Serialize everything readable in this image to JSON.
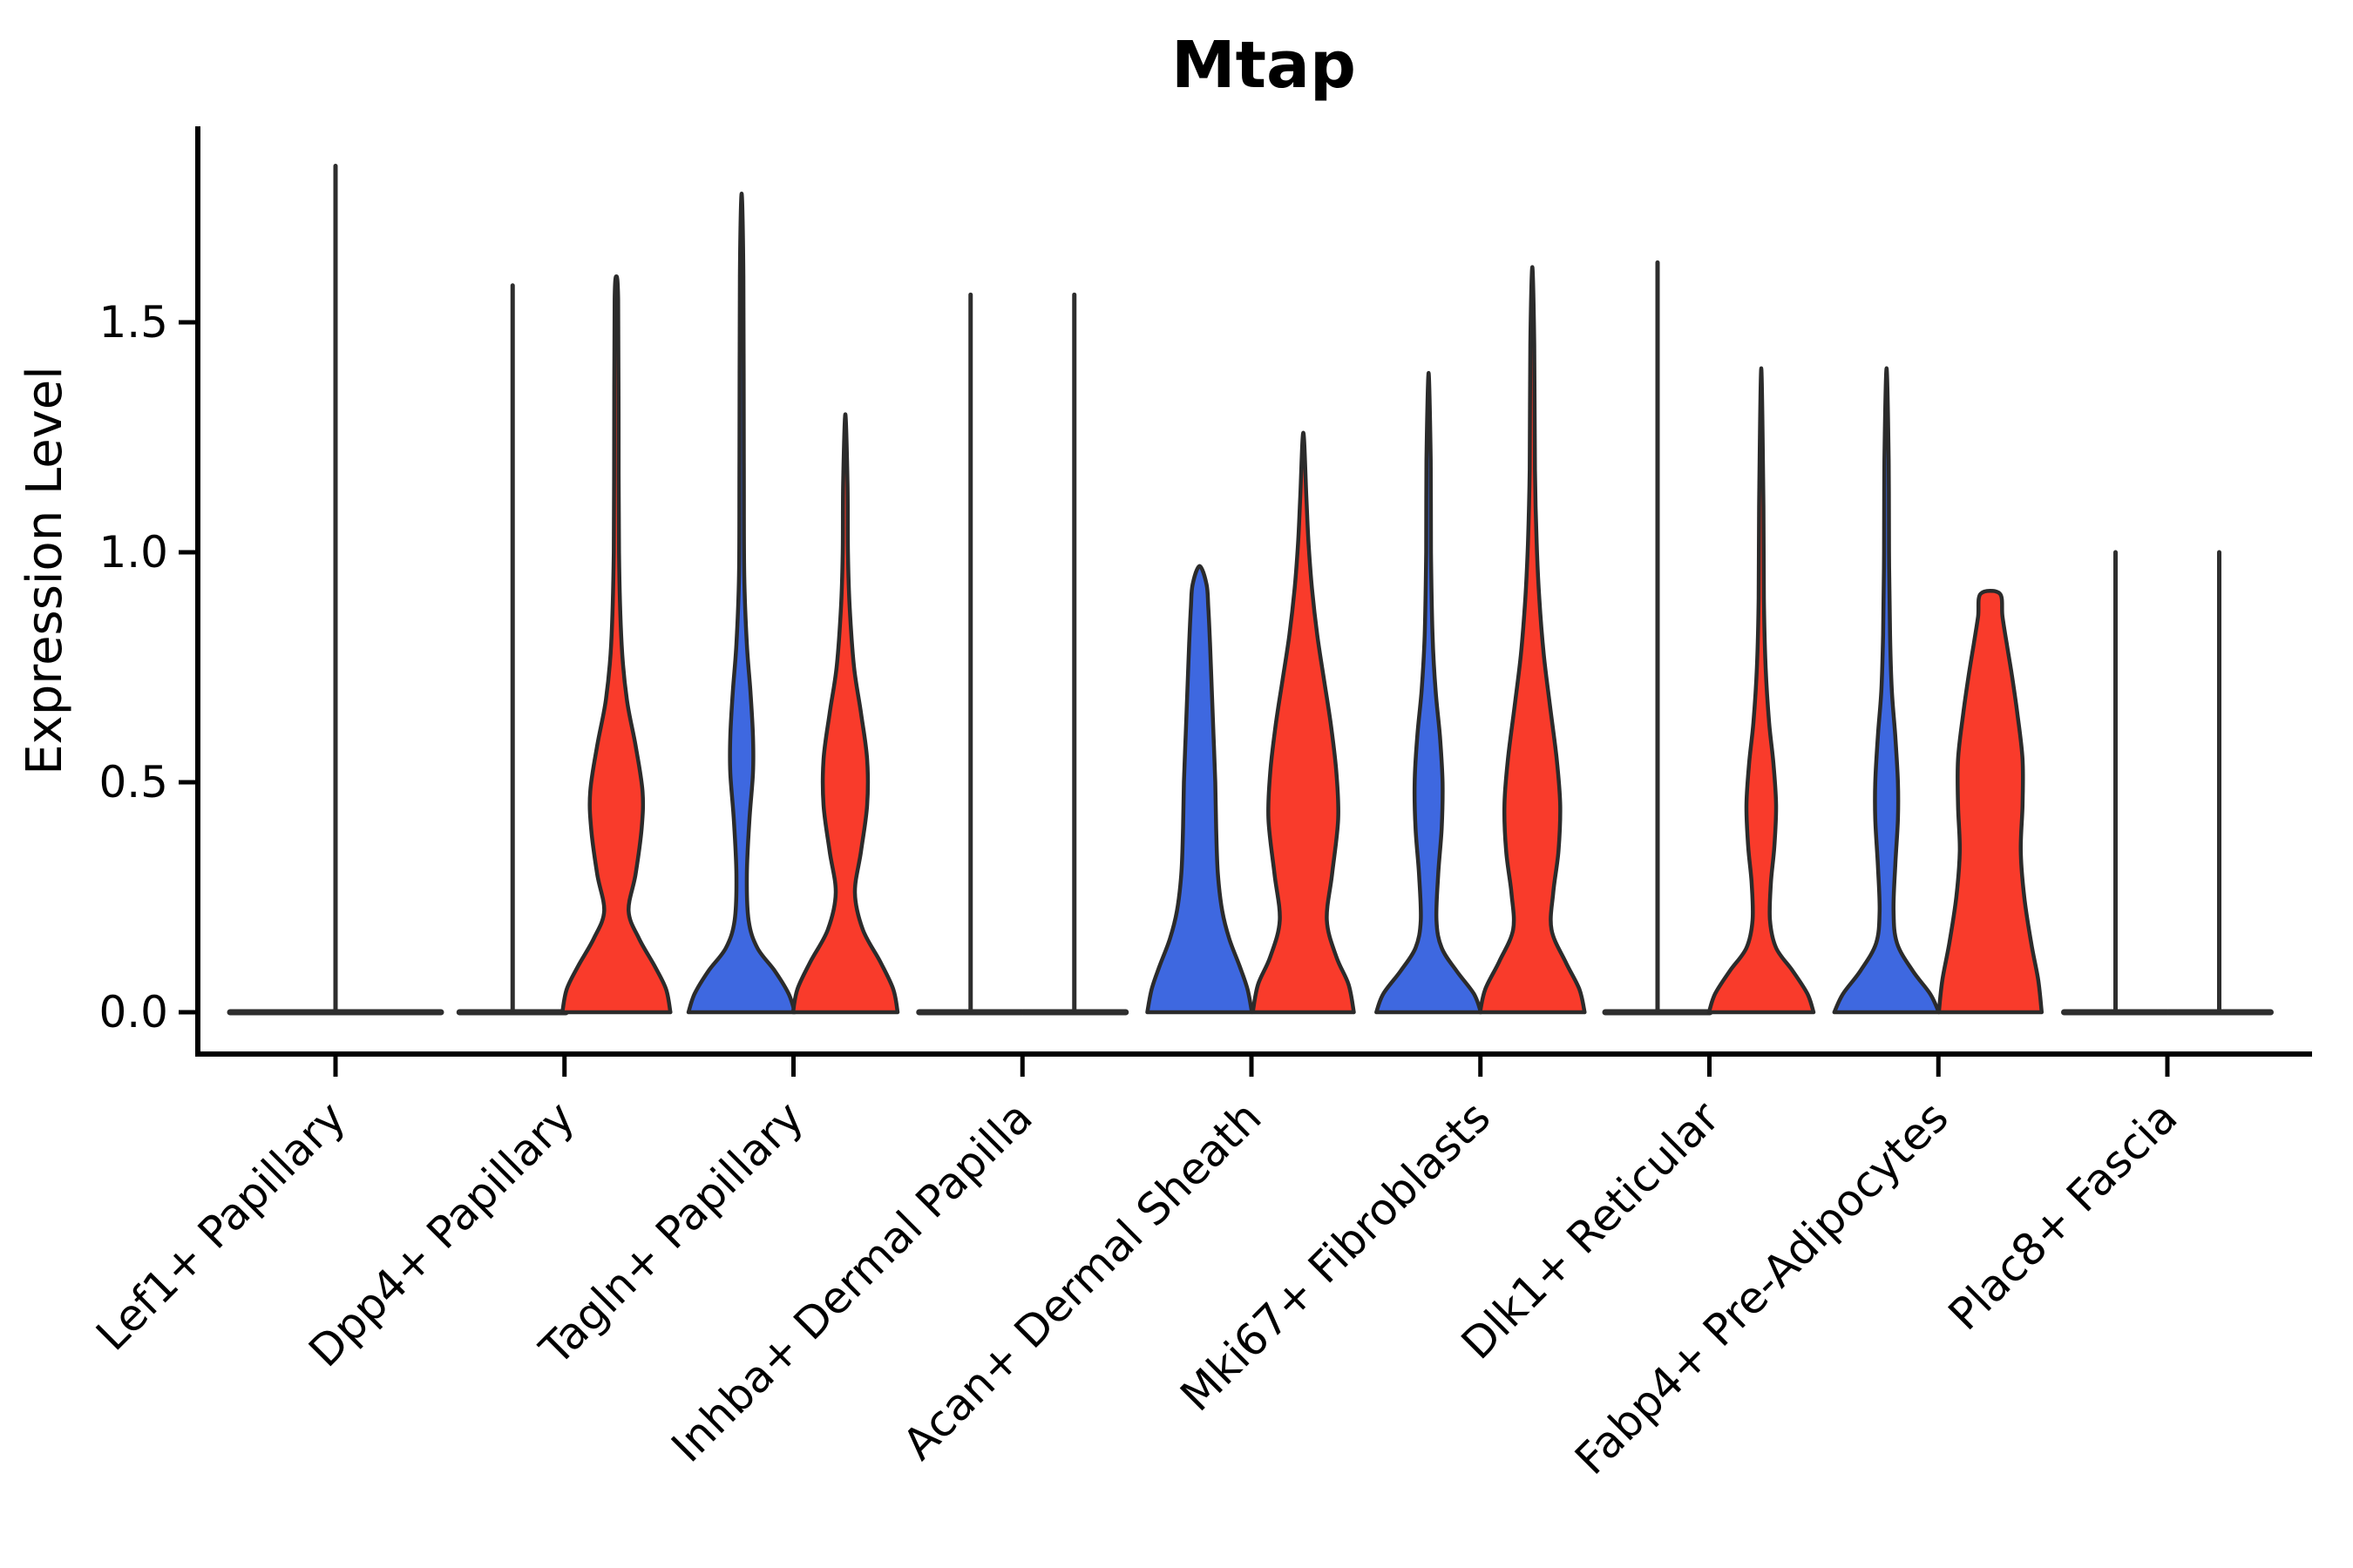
{
  "figure": {
    "title": "Mtap",
    "background": "#ffffff"
  },
  "chart_data": {
    "type": "violin",
    "subtype": "split-violin",
    "title": "Mtap",
    "xlabel": "",
    "ylabel": "Expression Level",
    "grid": false,
    "legend_position": "none",
    "ylim": [
      -0.09,
      1.93
    ],
    "ytick_labels": [
      "0.0",
      "0.5",
      "1.0",
      "1.5"
    ],
    "ytick_values": [
      0.0,
      0.5,
      1.0,
      1.5
    ],
    "categories": [
      "Lef1+ Papillary",
      "Dpp4+ Papillary",
      "Tagln+ Papillary",
      "Inhba+ Dermal Papilla",
      "Acan+ Dermal Sheath",
      "Mki67+ Fibroblasts",
      "Dlk1+ Reticular",
      "Fabp4+ Pre-Adipocytes",
      "Plac8+ Fascia"
    ],
    "colors": {
      "blue_fill": "#3E68E0",
      "red_fill": "#F93B2B",
      "outline": "#2b2b2b"
    },
    "violins": [
      {
        "category": 0,
        "side": "single",
        "color": "none",
        "flat": true,
        "halfwidth": 121,
        "max": 1.84
      },
      {
        "category": 1,
        "side": "left",
        "color": "blue_fill",
        "flat": true,
        "halfwidth": 61,
        "max": 1.58
      },
      {
        "category": 1,
        "side": "right",
        "color": "red_fill",
        "flat": false,
        "max": 1.6,
        "cap": false,
        "profile": [
          [
            0,
            62
          ],
          [
            0.05,
            57
          ],
          [
            0.1,
            44
          ],
          [
            0.16,
            26
          ],
          [
            0.22,
            14
          ],
          [
            0.3,
            22
          ],
          [
            0.4,
            29
          ],
          [
            0.48,
            30
          ],
          [
            0.58,
            22
          ],
          [
            0.68,
            12
          ],
          [
            0.8,
            6
          ],
          [
            1.0,
            3
          ],
          [
            1.3,
            2.5
          ],
          [
            1.55,
            2
          ]
        ]
      },
      {
        "category": 2,
        "side": "left",
        "color": "blue_fill",
        "flat": false,
        "max": 1.78,
        "cap": false,
        "profile": [
          [
            0,
            61
          ],
          [
            0.04,
            54
          ],
          [
            0.09,
            38
          ],
          [
            0.14,
            18
          ],
          [
            0.2,
            8
          ],
          [
            0.3,
            6
          ],
          [
            0.42,
            9
          ],
          [
            0.52,
            13
          ],
          [
            0.6,
            13
          ],
          [
            0.7,
            10
          ],
          [
            0.8,
            6
          ],
          [
            0.95,
            3
          ],
          [
            1.2,
            2.5
          ],
          [
            1.6,
            2
          ]
        ]
      },
      {
        "category": 2,
        "side": "right",
        "color": "red_fill",
        "flat": false,
        "max": 1.3,
        "cap": false,
        "profile": [
          [
            0,
            60
          ],
          [
            0.05,
            55
          ],
          [
            0.11,
            40
          ],
          [
            0.18,
            20
          ],
          [
            0.26,
            11
          ],
          [
            0.35,
            18
          ],
          [
            0.45,
            25
          ],
          [
            0.55,
            25
          ],
          [
            0.65,
            18
          ],
          [
            0.75,
            10
          ],
          [
            0.88,
            5
          ],
          [
            1.0,
            3
          ],
          [
            1.15,
            2.5
          ]
        ]
      },
      {
        "category": 3,
        "side": "left",
        "color": "blue_fill",
        "flat": true,
        "halfwidth": 59,
        "max": 1.56
      },
      {
        "category": 3,
        "side": "right",
        "color": "red_fill",
        "flat": true,
        "halfwidth": 59,
        "max": 1.56
      },
      {
        "category": 4,
        "side": "left",
        "color": "blue_fill",
        "flat": false,
        "max": 0.97,
        "cap": false,
        "profile": [
          [
            0,
            60
          ],
          [
            0.05,
            55
          ],
          [
            0.1,
            46
          ],
          [
            0.16,
            34
          ],
          [
            0.22,
            26
          ],
          [
            0.3,
            21
          ],
          [
            0.4,
            19
          ],
          [
            0.5,
            18
          ],
          [
            0.6,
            16
          ],
          [
            0.7,
            14
          ],
          [
            0.8,
            12
          ],
          [
            0.88,
            10
          ],
          [
            0.93,
            8
          ]
        ]
      },
      {
        "category": 4,
        "side": "right",
        "color": "red_fill",
        "flat": false,
        "max": 1.26,
        "cap": false,
        "profile": [
          [
            0,
            58
          ],
          [
            0.06,
            52
          ],
          [
            0.12,
            38
          ],
          [
            0.2,
            27
          ],
          [
            0.3,
            33
          ],
          [
            0.42,
            40
          ],
          [
            0.52,
            38
          ],
          [
            0.62,
            32
          ],
          [
            0.72,
            24
          ],
          [
            0.82,
            16
          ],
          [
            0.92,
            10
          ],
          [
            1.02,
            6
          ],
          [
            1.12,
            3.5
          ]
        ]
      },
      {
        "category": 5,
        "side": "left",
        "color": "blue_fill",
        "flat": false,
        "max": 1.39,
        "cap": false,
        "profile": [
          [
            0,
            60
          ],
          [
            0.04,
            52
          ],
          [
            0.09,
            32
          ],
          [
            0.14,
            15
          ],
          [
            0.2,
            9
          ],
          [
            0.3,
            11
          ],
          [
            0.4,
            15
          ],
          [
            0.5,
            16
          ],
          [
            0.6,
            13
          ],
          [
            0.7,
            8
          ],
          [
            0.82,
            4.5
          ],
          [
            1.0,
            2.8
          ],
          [
            1.2,
            2.4
          ]
        ]
      },
      {
        "category": 5,
        "side": "right",
        "color": "red_fill",
        "flat": false,
        "max": 1.62,
        "cap": false,
        "profile": [
          [
            0,
            60
          ],
          [
            0.05,
            54
          ],
          [
            0.11,
            38
          ],
          [
            0.18,
            22
          ],
          [
            0.26,
            24
          ],
          [
            0.35,
            30
          ],
          [
            0.45,
            32
          ],
          [
            0.55,
            28
          ],
          [
            0.67,
            20
          ],
          [
            0.78,
            13
          ],
          [
            0.9,
            8
          ],
          [
            1.02,
            5
          ],
          [
            1.18,
            3
          ],
          [
            1.45,
            2.2
          ]
        ]
      },
      {
        "category": 6,
        "side": "left",
        "color": "blue_fill",
        "flat": true,
        "halfwidth": 60,
        "max": 1.63
      },
      {
        "category": 6,
        "side": "right",
        "color": "red_fill",
        "flat": false,
        "max": 1.4,
        "cap": false,
        "profile": [
          [
            0,
            60
          ],
          [
            0.04,
            53
          ],
          [
            0.09,
            36
          ],
          [
            0.14,
            17
          ],
          [
            0.2,
            10
          ],
          [
            0.28,
            11
          ],
          [
            0.36,
            15
          ],
          [
            0.45,
            17
          ],
          [
            0.54,
            14
          ],
          [
            0.63,
            9
          ],
          [
            0.75,
            5
          ],
          [
            0.9,
            3
          ],
          [
            1.1,
            2.5
          ]
        ]
      },
      {
        "category": 7,
        "side": "left",
        "color": "blue_fill",
        "flat": false,
        "max": 1.4,
        "cap": false,
        "profile": [
          [
            0,
            60
          ],
          [
            0.04,
            50
          ],
          [
            0.09,
            30
          ],
          [
            0.15,
            12
          ],
          [
            0.22,
            8
          ],
          [
            0.32,
            10
          ],
          [
            0.42,
            13
          ],
          [
            0.5,
            13
          ],
          [
            0.6,
            10
          ],
          [
            0.7,
            6
          ],
          [
            0.82,
            4
          ],
          [
            1.0,
            2.8
          ],
          [
            1.2,
            2.4
          ]
        ]
      },
      {
        "category": 7,
        "side": "right",
        "color": "red_fill",
        "flat": false,
        "max": 0.91,
        "cap": true,
        "profile": [
          [
            0,
            59
          ],
          [
            0.07,
            55
          ],
          [
            0.15,
            47
          ],
          [
            0.25,
            39
          ],
          [
            0.35,
            35
          ],
          [
            0.45,
            37
          ],
          [
            0.55,
            37
          ],
          [
            0.65,
            31
          ],
          [
            0.73,
            25
          ],
          [
            0.8,
            19
          ],
          [
            0.86,
            14
          ],
          [
            0.91,
            11
          ]
        ]
      },
      {
        "category": 8,
        "side": "left",
        "color": "blue_fill",
        "flat": true,
        "halfwidth": 59,
        "max": 1.0
      },
      {
        "category": 8,
        "side": "right",
        "color": "red_fill",
        "flat": true,
        "halfwidth": 59,
        "max": 1.0
      }
    ]
  }
}
